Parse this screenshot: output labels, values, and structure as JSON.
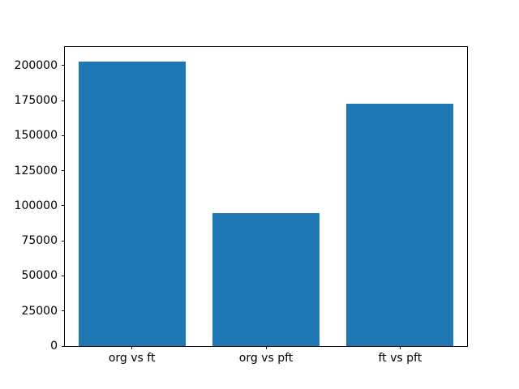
{
  "chart_data": {
    "type": "bar",
    "categories": [
      "org vs ft",
      "org vs pft",
      "ft vs pft"
    ],
    "values": [
      203000,
      95000,
      173000
    ],
    "title": "",
    "xlabel": "",
    "ylabel": "",
    "ylim": [
      0,
      213150
    ],
    "y_ticks": [
      0,
      25000,
      50000,
      75000,
      100000,
      125000,
      150000,
      175000,
      200000
    ],
    "bar_color": "#1f77b4",
    "spine_color": "#000000",
    "background_color": "#ffffff",
    "grid": false,
    "legend": "none",
    "bar_width_fraction": 0.8
  }
}
